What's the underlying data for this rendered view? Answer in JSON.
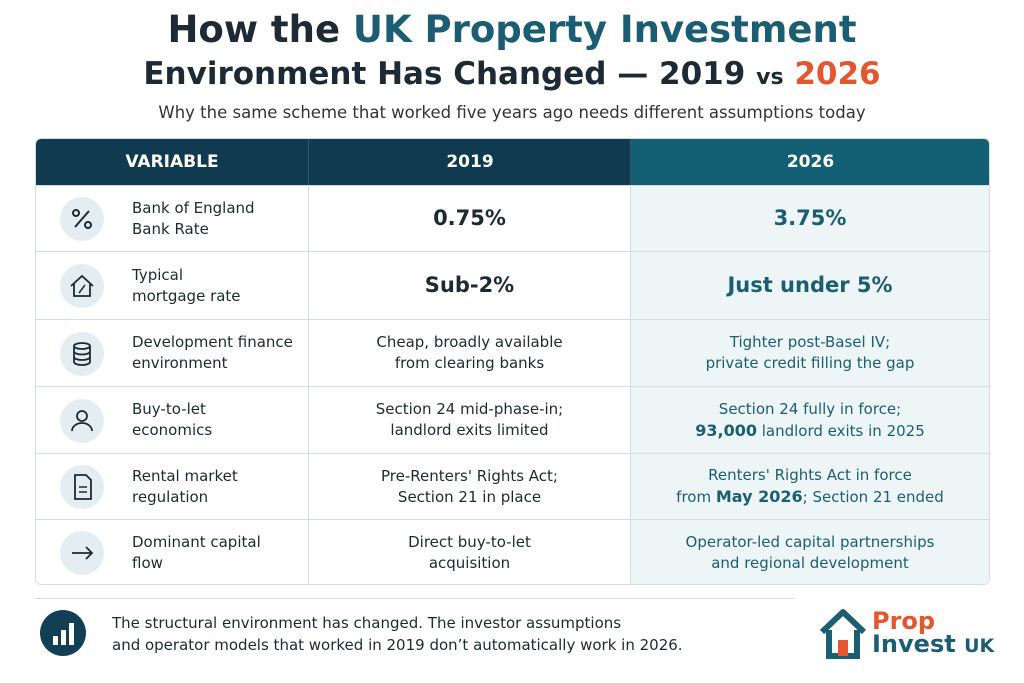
{
  "header": {
    "title_line1": [
      "How the ",
      "UK Property Investment"
    ],
    "title_line2": [
      "Environment Has Changed — 2019 ",
      "vs",
      " 2026"
    ],
    "subtitle": "Why the same scheme that worked five years ago needs different assumptions today"
  },
  "table": {
    "columns": [
      "VARIABLE",
      "2019",
      "2026"
    ],
    "rows": [
      {
        "variable": [
          "Bank of England",
          "Bank Rate"
        ],
        "large": true,
        "y2019": [
          [
            "0.75%"
          ]
        ],
        "y2026": [
          [
            "3.75%"
          ]
        ]
      },
      {
        "variable": [
          "Typical",
          "mortgage rate"
        ],
        "large": true,
        "y2019": [
          [
            "Sub-2%"
          ]
        ],
        "y2026": [
          [
            "Just under 5%"
          ]
        ]
      },
      {
        "variable": [
          "Development finance",
          "environment"
        ],
        "large": false,
        "y2019": [
          [
            "Cheap, broadly available"
          ],
          [
            "from clearing banks"
          ]
        ],
        "y2026": [
          [
            "Tighter post-Basel IV;"
          ],
          [
            "private credit filling the gap"
          ]
        ]
      },
      {
        "variable": [
          "Buy-to-let",
          "economics"
        ],
        "large": false,
        "y2019": [
          [
            "Section 24 mid-phase-in;"
          ],
          [
            "landlord exits limited"
          ]
        ],
        "y2026": [
          [
            "Section 24 fully in force;"
          ],
          [
            {
              "text": "93,000",
              "bold": true
            },
            " landlord exits in 2025"
          ]
        ]
      },
      {
        "variable": [
          "Rental market",
          "regulation"
        ],
        "large": false,
        "y2019": [
          [
            "Pre-Renters' Rights Act;"
          ],
          [
            "Section 21 in place"
          ]
        ],
        "y2026": [
          [
            "Renters' Rights Act in force"
          ],
          [
            "from ",
            {
              "text": "May 2026",
              "bold": true
            },
            "; Section 21 ended"
          ]
        ]
      },
      {
        "variable": [
          "Dominant capital",
          "flow"
        ],
        "large": false,
        "y2019": [
          [
            "Direct buy-to-let"
          ],
          [
            "acquisition"
          ]
        ],
        "y2026": [
          [
            "Operator-led capital partnerships"
          ],
          [
            "and regional development"
          ]
        ]
      }
    ]
  },
  "footer": {
    "note": [
      "The structural environment has changed. The investor assumptions",
      "and operator models that worked in 2019 don’t automatically work in 2026."
    ],
    "logo": [
      "Prop",
      "Invest",
      "UK"
    ]
  }
}
